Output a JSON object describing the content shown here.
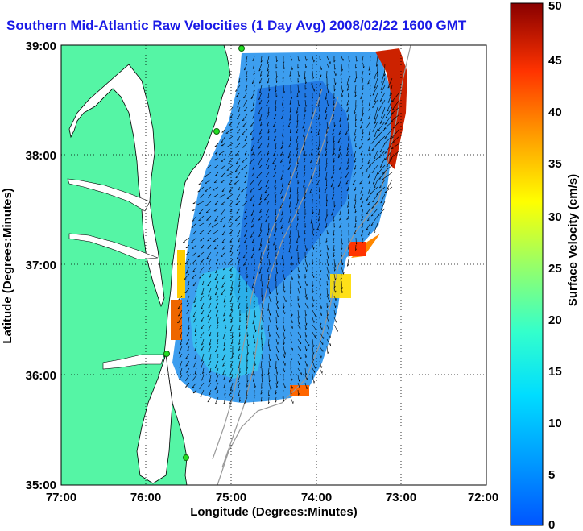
{
  "title": "Southern Mid-Atlantic Raw Velocities (1 Day Avg) 2008/02/22 1600 GMT",
  "map": {
    "xlabel": "Longitude (Degrees:Minutes)",
    "ylabel": "Latitude (Degrees:Minutes)",
    "x_ticks": [
      "77:00",
      "76:00",
      "75:00",
      "74:00",
      "73:00",
      "72:00"
    ],
    "y_ticks": [
      "39:00",
      "38:00",
      "37:00",
      "36:00",
      "35:00"
    ],
    "grid": "dotted",
    "colors": {
      "land": "#55f5a5",
      "coast_line": "#000000",
      "bathymetry": "#999999",
      "vector": "#000000",
      "station": "#22dd22"
    }
  },
  "colorbar": {
    "label": "Surface Velocity (cm/s)",
    "ticks": [
      "0",
      "5",
      "10",
      "15",
      "20",
      "25",
      "30",
      "35",
      "40",
      "45",
      "50"
    ],
    "range": [
      0,
      50
    ],
    "colormap": "jet"
  }
}
